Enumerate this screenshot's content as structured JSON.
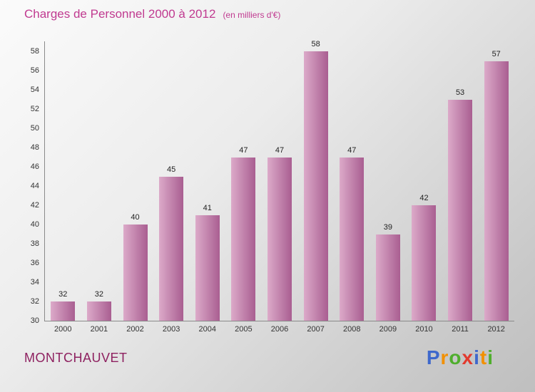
{
  "header": {
    "title": "Charges de Personnel 2000 à 2012",
    "subtitle": "(en milliers d'€)"
  },
  "footer": {
    "place": "MONTCHAUVET",
    "logo_letters": [
      {
        "ch": "P",
        "color": "#3e68cc"
      },
      {
        "ch": "r",
        "color": "#f29000"
      },
      {
        "ch": "o",
        "color": "#4fae2d"
      },
      {
        "ch": "x",
        "color": "#e23a2e"
      },
      {
        "ch": "i",
        "color": "#3e68cc"
      },
      {
        "ch": "t",
        "color": "#f29000"
      },
      {
        "ch": "i",
        "color": "#4fae2d"
      }
    ]
  },
  "chart_data": {
    "type": "bar",
    "title": "Charges de Personnel 2000 à 2012",
    "subtitle": "(en milliers d'€)",
    "categories": [
      "2000",
      "2001",
      "2002",
      "2003",
      "2004",
      "2005",
      "2006",
      "2007",
      "2008",
      "2009",
      "2010",
      "2011",
      "2012"
    ],
    "values": [
      32,
      32,
      40,
      45,
      41,
      47,
      47,
      58,
      47,
      39,
      42,
      53,
      57
    ],
    "xlabel": "",
    "ylabel": "",
    "ylim": [
      30,
      59
    ],
    "yticks": [
      30,
      32,
      34,
      36,
      38,
      40,
      42,
      44,
      46,
      48,
      50,
      52,
      54,
      56,
      58
    ],
    "grid": false,
    "legend": "none",
    "bar_gradient": [
      "#dcaac9",
      "#a95e91"
    ],
    "axis_color": "#8a8a8a"
  }
}
